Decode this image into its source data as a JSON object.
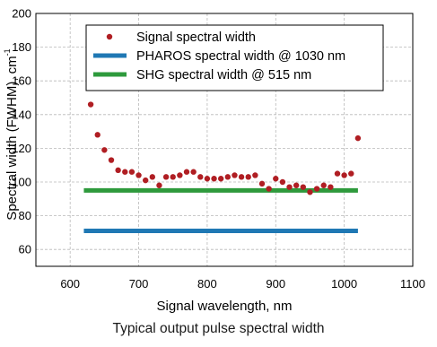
{
  "caption": "Typical output pulse spectral width",
  "chart_data": {
    "type": "scatter",
    "title": "",
    "xlabel": "Signal wavelength, nm",
    "ylabel": "Spectral width (FWHM), cm",
    "ylabel_superscript": "-1",
    "xlim": [
      550,
      1100
    ],
    "ylim": [
      50,
      200
    ],
    "xticks": [
      600,
      700,
      800,
      900,
      1000,
      1100
    ],
    "yticks": [
      60,
      80,
      100,
      120,
      140,
      160,
      180,
      200
    ],
    "grid": true,
    "legend_position": "top-left",
    "series": [
      {
        "name": "Signal spectral width",
        "kind": "scatter",
        "color": "#b01e23",
        "x": [
          630,
          640,
          650,
          660,
          670,
          680,
          690,
          700,
          710,
          720,
          730,
          740,
          750,
          760,
          770,
          780,
          790,
          800,
          810,
          820,
          830,
          840,
          850,
          860,
          870,
          880,
          890,
          900,
          910,
          920,
          930,
          940,
          950,
          960,
          970,
          980,
          990,
          1000,
          1010,
          1020
        ],
        "y": [
          146,
          128,
          119,
          113,
          107,
          106,
          106,
          104,
          101,
          103,
          98,
          103,
          103,
          104,
          106,
          106,
          103,
          102,
          102,
          102,
          103,
          104,
          103,
          103,
          104,
          99,
          96,
          102,
          100,
          97,
          98,
          97,
          94,
          96,
          98,
          97,
          105,
          104,
          105,
          126
        ]
      },
      {
        "name": "PHAROS spectral width @ 1030 nm",
        "kind": "line",
        "color": "#1f78b4",
        "x": [
          620,
          1020
        ],
        "y": [
          71,
          71
        ]
      },
      {
        "name": "SHG spectral width @ 515 nm",
        "kind": "line",
        "color": "#2e9a3c",
        "x": [
          620,
          1020
        ],
        "y": [
          95,
          95
        ]
      }
    ]
  }
}
